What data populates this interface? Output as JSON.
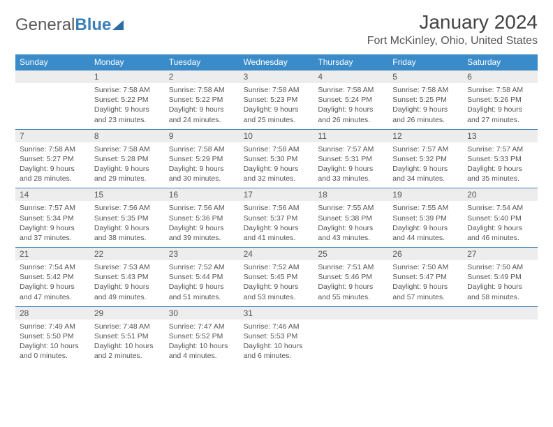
{
  "logo": {
    "text1": "General",
    "text2": "Blue"
  },
  "title": "January 2024",
  "location": "Fort McKinley, Ohio, United States",
  "header_bg": "#3a8bc9",
  "num_bg": "#ededed",
  "border_color": "#3a7fb8",
  "dayNames": [
    "Sunday",
    "Monday",
    "Tuesday",
    "Wednesday",
    "Thursday",
    "Friday",
    "Saturday"
  ],
  "weeks": [
    [
      null,
      {
        "n": "1",
        "sr": "Sunrise: 7:58 AM",
        "ss": "Sunset: 5:22 PM",
        "d1": "Daylight: 9 hours",
        "d2": "and 23 minutes."
      },
      {
        "n": "2",
        "sr": "Sunrise: 7:58 AM",
        "ss": "Sunset: 5:22 PM",
        "d1": "Daylight: 9 hours",
        "d2": "and 24 minutes."
      },
      {
        "n": "3",
        "sr": "Sunrise: 7:58 AM",
        "ss": "Sunset: 5:23 PM",
        "d1": "Daylight: 9 hours",
        "d2": "and 25 minutes."
      },
      {
        "n": "4",
        "sr": "Sunrise: 7:58 AM",
        "ss": "Sunset: 5:24 PM",
        "d1": "Daylight: 9 hours",
        "d2": "and 26 minutes."
      },
      {
        "n": "5",
        "sr": "Sunrise: 7:58 AM",
        "ss": "Sunset: 5:25 PM",
        "d1": "Daylight: 9 hours",
        "d2": "and 26 minutes."
      },
      {
        "n": "6",
        "sr": "Sunrise: 7:58 AM",
        "ss": "Sunset: 5:26 PM",
        "d1": "Daylight: 9 hours",
        "d2": "and 27 minutes."
      }
    ],
    [
      {
        "n": "7",
        "sr": "Sunrise: 7:58 AM",
        "ss": "Sunset: 5:27 PM",
        "d1": "Daylight: 9 hours",
        "d2": "and 28 minutes."
      },
      {
        "n": "8",
        "sr": "Sunrise: 7:58 AM",
        "ss": "Sunset: 5:28 PM",
        "d1": "Daylight: 9 hours",
        "d2": "and 29 minutes."
      },
      {
        "n": "9",
        "sr": "Sunrise: 7:58 AM",
        "ss": "Sunset: 5:29 PM",
        "d1": "Daylight: 9 hours",
        "d2": "and 30 minutes."
      },
      {
        "n": "10",
        "sr": "Sunrise: 7:58 AM",
        "ss": "Sunset: 5:30 PM",
        "d1": "Daylight: 9 hours",
        "d2": "and 32 minutes."
      },
      {
        "n": "11",
        "sr": "Sunrise: 7:57 AM",
        "ss": "Sunset: 5:31 PM",
        "d1": "Daylight: 9 hours",
        "d2": "and 33 minutes."
      },
      {
        "n": "12",
        "sr": "Sunrise: 7:57 AM",
        "ss": "Sunset: 5:32 PM",
        "d1": "Daylight: 9 hours",
        "d2": "and 34 minutes."
      },
      {
        "n": "13",
        "sr": "Sunrise: 7:57 AM",
        "ss": "Sunset: 5:33 PM",
        "d1": "Daylight: 9 hours",
        "d2": "and 35 minutes."
      }
    ],
    [
      {
        "n": "14",
        "sr": "Sunrise: 7:57 AM",
        "ss": "Sunset: 5:34 PM",
        "d1": "Daylight: 9 hours",
        "d2": "and 37 minutes."
      },
      {
        "n": "15",
        "sr": "Sunrise: 7:56 AM",
        "ss": "Sunset: 5:35 PM",
        "d1": "Daylight: 9 hours",
        "d2": "and 38 minutes."
      },
      {
        "n": "16",
        "sr": "Sunrise: 7:56 AM",
        "ss": "Sunset: 5:36 PM",
        "d1": "Daylight: 9 hours",
        "d2": "and 39 minutes."
      },
      {
        "n": "17",
        "sr": "Sunrise: 7:56 AM",
        "ss": "Sunset: 5:37 PM",
        "d1": "Daylight: 9 hours",
        "d2": "and 41 minutes."
      },
      {
        "n": "18",
        "sr": "Sunrise: 7:55 AM",
        "ss": "Sunset: 5:38 PM",
        "d1": "Daylight: 9 hours",
        "d2": "and 43 minutes."
      },
      {
        "n": "19",
        "sr": "Sunrise: 7:55 AM",
        "ss": "Sunset: 5:39 PM",
        "d1": "Daylight: 9 hours",
        "d2": "and 44 minutes."
      },
      {
        "n": "20",
        "sr": "Sunrise: 7:54 AM",
        "ss": "Sunset: 5:40 PM",
        "d1": "Daylight: 9 hours",
        "d2": "and 46 minutes."
      }
    ],
    [
      {
        "n": "21",
        "sr": "Sunrise: 7:54 AM",
        "ss": "Sunset: 5:42 PM",
        "d1": "Daylight: 9 hours",
        "d2": "and 47 minutes."
      },
      {
        "n": "22",
        "sr": "Sunrise: 7:53 AM",
        "ss": "Sunset: 5:43 PM",
        "d1": "Daylight: 9 hours",
        "d2": "and 49 minutes."
      },
      {
        "n": "23",
        "sr": "Sunrise: 7:52 AM",
        "ss": "Sunset: 5:44 PM",
        "d1": "Daylight: 9 hours",
        "d2": "and 51 minutes."
      },
      {
        "n": "24",
        "sr": "Sunrise: 7:52 AM",
        "ss": "Sunset: 5:45 PM",
        "d1": "Daylight: 9 hours",
        "d2": "and 53 minutes."
      },
      {
        "n": "25",
        "sr": "Sunrise: 7:51 AM",
        "ss": "Sunset: 5:46 PM",
        "d1": "Daylight: 9 hours",
        "d2": "and 55 minutes."
      },
      {
        "n": "26",
        "sr": "Sunrise: 7:50 AM",
        "ss": "Sunset: 5:47 PM",
        "d1": "Daylight: 9 hours",
        "d2": "and 57 minutes."
      },
      {
        "n": "27",
        "sr": "Sunrise: 7:50 AM",
        "ss": "Sunset: 5:49 PM",
        "d1": "Daylight: 9 hours",
        "d2": "and 58 minutes."
      }
    ],
    [
      {
        "n": "28",
        "sr": "Sunrise: 7:49 AM",
        "ss": "Sunset: 5:50 PM",
        "d1": "Daylight: 10 hours",
        "d2": "and 0 minutes."
      },
      {
        "n": "29",
        "sr": "Sunrise: 7:48 AM",
        "ss": "Sunset: 5:51 PM",
        "d1": "Daylight: 10 hours",
        "d2": "and 2 minutes."
      },
      {
        "n": "30",
        "sr": "Sunrise: 7:47 AM",
        "ss": "Sunset: 5:52 PM",
        "d1": "Daylight: 10 hours",
        "d2": "and 4 minutes."
      },
      {
        "n": "31",
        "sr": "Sunrise: 7:46 AM",
        "ss": "Sunset: 5:53 PM",
        "d1": "Daylight: 10 hours",
        "d2": "and 6 minutes."
      },
      null,
      null,
      null
    ]
  ]
}
